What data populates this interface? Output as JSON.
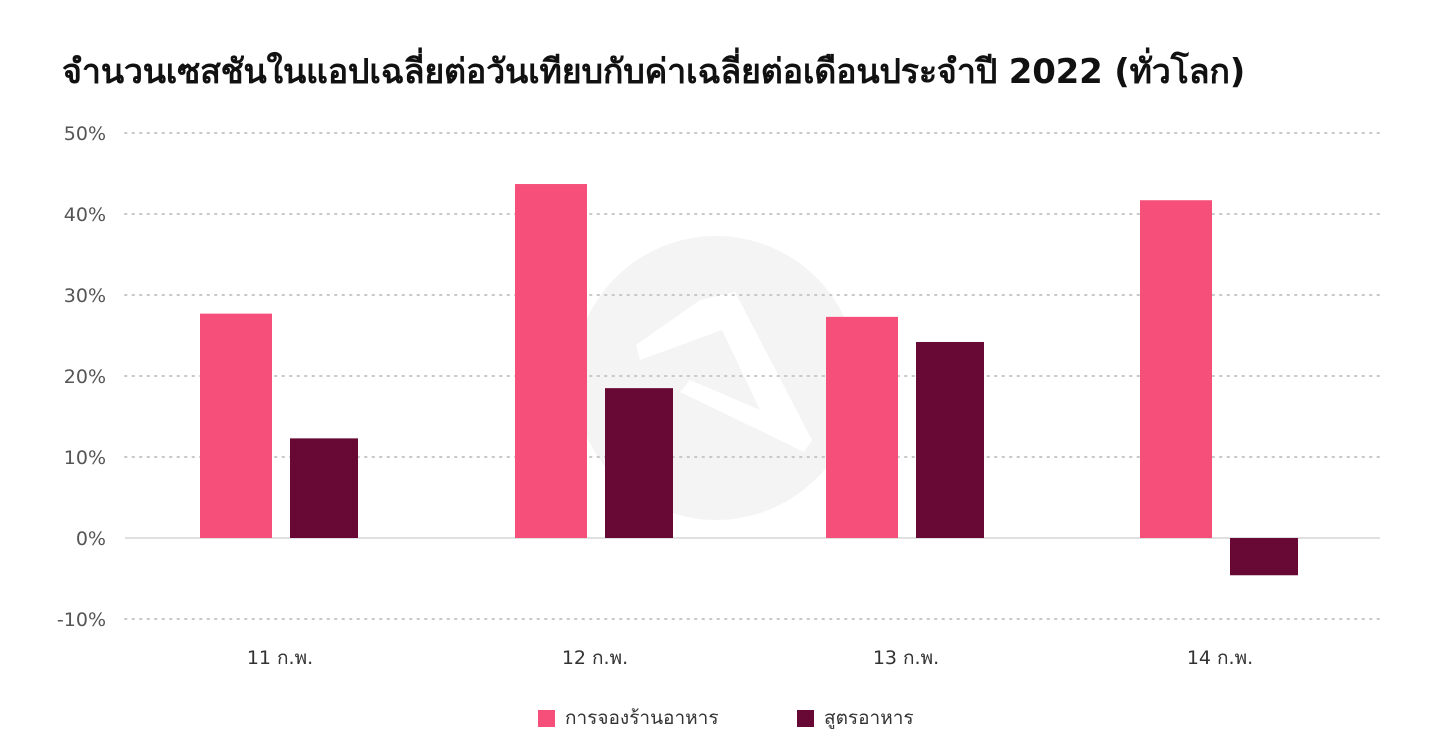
{
  "title": "จำนวนเซสชันในแอปเฉลี่ยต่อวันเทียบกับค่าเฉลี่ยต่อเดือนประจำปี 2022 (ทั่วโลก)",
  "colors": {
    "series_1": "#F54F7A",
    "series_2": "#680834",
    "grid": "#C8C8C8",
    "axis": "#D6D6D6",
    "tick_text": "#555555",
    "watermark": "#F4F4F4"
  },
  "watermark_icon": "app-logo-watermark-icon",
  "legend": {
    "items": [
      {
        "label": "การจองร้านอาหาร"
      },
      {
        "label": "สูตรอาหาร"
      }
    ]
  },
  "chart_data": {
    "type": "bar",
    "title": "จำนวนเซสชันในแอปเฉลี่ยต่อวันเทียบกับค่าเฉลี่ยต่อเดือนประจำปี 2022 (ทั่วโลก)",
    "categories": [
      "11 ก.พ.",
      "12 ก.พ.",
      "13 ก.พ.",
      "14 ก.พ."
    ],
    "series": [
      {
        "name": "การจองร้านอาหาร",
        "values": [
          27.7,
          43.7,
          27.3,
          41.7
        ]
      },
      {
        "name": "สูตรอาหาร",
        "values": [
          12.3,
          18.5,
          24.2,
          -4.6
        ]
      }
    ],
    "ylim": [
      -10,
      50
    ],
    "yticks": [
      50,
      40,
      30,
      20,
      10,
      0,
      -10
    ],
    "ytick_labels": [
      "50%",
      "40%",
      "30%",
      "20%",
      "10%",
      "0%",
      "-10%"
    ],
    "grid": true,
    "legend_position": "bottom-center",
    "xlabel": "",
    "ylabel": ""
  }
}
